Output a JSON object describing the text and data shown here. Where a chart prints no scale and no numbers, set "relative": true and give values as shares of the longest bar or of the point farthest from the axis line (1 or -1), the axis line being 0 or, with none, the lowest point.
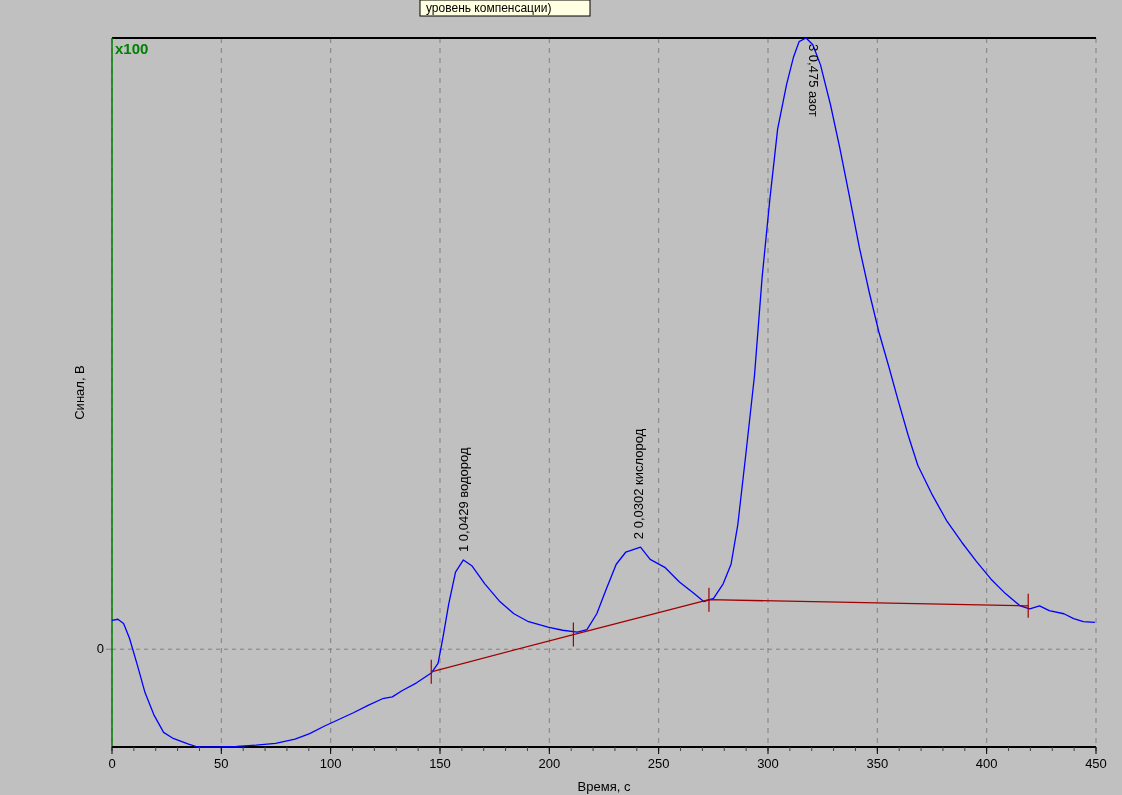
{
  "chart_data": {
    "type": "line",
    "relative": true,
    "xlabel": "Время, с",
    "ylabel": "Синал, В",
    "xlim": [
      0,
      450
    ],
    "xticks": [
      0,
      50,
      100,
      150,
      200,
      250,
      300,
      350,
      400,
      450
    ],
    "grid": "x",
    "line_style": "solid",
    "ref_lines": [
      {
        "axis": "y",
        "value": 0,
        "label": "0",
        "color": "#808080",
        "line_style": "dashed"
      }
    ],
    "annotations": [
      "x100",
      "уровень компенсации)",
      {
        "text": "1  0,0429  водород",
        "x": 161,
        "y": 0.146
      },
      {
        "text": "2  0,0302  кислород",
        "x": 241,
        "y": 0.167
      },
      {
        "text": "3  0,475  азот",
        "x": 317,
        "y": 1
      }
    ],
    "series": [
      {
        "color": "#0000ff",
        "x": [
          0,
          2.7,
          5.3,
          8,
          11.6,
          15.1,
          19.1,
          23.6,
          28,
          34.7,
          39.2,
          48.1,
          57,
          65.9,
          74.8,
          83.7,
          90.4,
          97,
          103.7,
          110.4,
          117.1,
          123.7,
          128.2,
          132.6,
          139.3,
          146,
          149.1,
          151.3,
          154,
          157.1,
          160.7,
          164.7,
          170.5,
          177.1,
          183.8,
          190.5,
          199.4,
          206.1,
          212.8,
          217.2,
          221.7,
          226.1,
          230.6,
          235,
          241.7,
          246.1,
          252.8,
          259.5,
          266.2,
          270.6,
          275.1,
          279.5,
          283.1,
          286.2,
          289.8,
          293.8,
          297.3,
          300.9,
          304.4,
          308.5,
          311.6,
          314.2,
          317.4,
          320.5,
          324,
          328.5,
          332.9,
          337.4,
          341.8,
          346.3,
          350.7,
          355.2,
          359.6,
          364.1,
          368.5,
          375.2,
          381.9,
          388.6,
          395.2,
          401.9,
          408.6,
          415.3,
          419.7,
          424.2,
          428.6,
          435.3,
          439.8,
          444.2,
          449.5
        ],
        "values": [
          0.047,
          0.049,
          0.042,
          0.018,
          -0.026,
          -0.071,
          -0.107,
          -0.136,
          -0.146,
          -0.155,
          -0.16,
          -0.16,
          -0.159,
          -0.157,
          -0.154,
          -0.147,
          -0.138,
          -0.126,
          -0.115,
          -0.104,
          -0.092,
          -0.081,
          -0.078,
          -0.068,
          -0.055,
          -0.039,
          -0.023,
          0.018,
          0.074,
          0.126,
          0.146,
          0.136,
          0.107,
          0.079,
          0.058,
          0.045,
          0.036,
          0.031,
          0.028,
          0.032,
          0.058,
          0.099,
          0.139,
          0.159,
          0.167,
          0.147,
          0.134,
          0.11,
          0.091,
          0.078,
          0.083,
          0.107,
          0.139,
          0.204,
          0.317,
          0.447,
          0.608,
          0.738,
          0.851,
          0.924,
          0.968,
          0.994,
          1,
          0.989,
          0.956,
          0.892,
          0.819,
          0.738,
          0.657,
          0.584,
          0.519,
          0.463,
          0.406,
          0.35,
          0.301,
          0.252,
          0.209,
          0.175,
          0.144,
          0.115,
          0.091,
          0.071,
          0.066,
          0.071,
          0.063,
          0.058,
          0.05,
          0.045,
          0.044
        ]
      },
      {
        "color": "#a00000",
        "x": [
          146,
          211,
          273,
          419
        ],
        "values": [
          -0.037,
          0.024,
          0.081,
          0.071
        ]
      }
    ]
  }
}
